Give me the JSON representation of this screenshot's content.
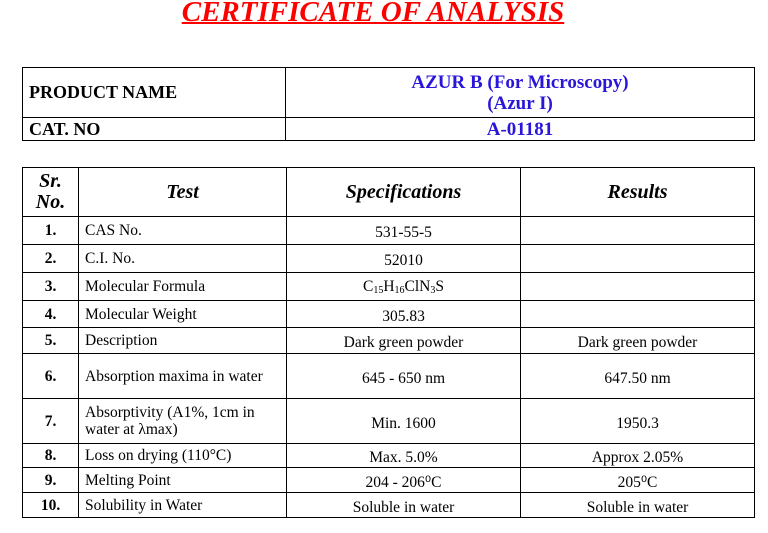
{
  "title": "CERTIFICATE OF ANALYSIS",
  "product": {
    "name_label": "PRODUCT NAME",
    "name_line1": "AZUR B (For Microscopy)",
    "name_line2": "(Azur I)",
    "cat_label": "CAT. NO",
    "cat_value": "A-01181"
  },
  "table": {
    "headers": {
      "sr_line1": "Sr.",
      "sr_line2": "No.",
      "test": "Test",
      "spec": "Specifications",
      "results": "Results"
    },
    "formula_parts": [
      "C",
      "15",
      "H",
      "16",
      "ClN",
      "3",
      "S"
    ],
    "rows": [
      {
        "sr": "1.",
        "test": "CAS No.",
        "spec": "531-55-5",
        "result": ""
      },
      {
        "sr": "2.",
        "test": "C.I. No.",
        "spec": "52010",
        "result": ""
      },
      {
        "sr": "3.",
        "test": "Molecular Formula",
        "spec": "C15H16ClN3S",
        "result": ""
      },
      {
        "sr": "4.",
        "test": "Molecular Weight",
        "spec": "305.83",
        "result": ""
      },
      {
        "sr": "5.",
        "test": "Description",
        "spec": "Dark green powder",
        "result": "Dark green powder"
      },
      {
        "sr": "6.",
        "test": "Absorption maxima in water",
        "spec": "645 - 650 nm",
        "result": "647.50 nm"
      },
      {
        "sr": "7.",
        "test": "Absorptivity (A1%, 1cm in water at λmax)",
        "spec": "Min. 1600",
        "result": "1950.3"
      },
      {
        "sr": "8.",
        "test": "Loss on drying (110°C)",
        "spec": "Max. 5.0%",
        "result": "Approx 2.05%"
      },
      {
        "sr": "9.",
        "test": "Melting Point",
        "spec": "204 - 206⁰C",
        "result": "205⁰C"
      },
      {
        "sr": "10.",
        "test": "Solubility in Water",
        "spec": "Soluble in water",
        "result": "Soluble in water"
      }
    ]
  }
}
